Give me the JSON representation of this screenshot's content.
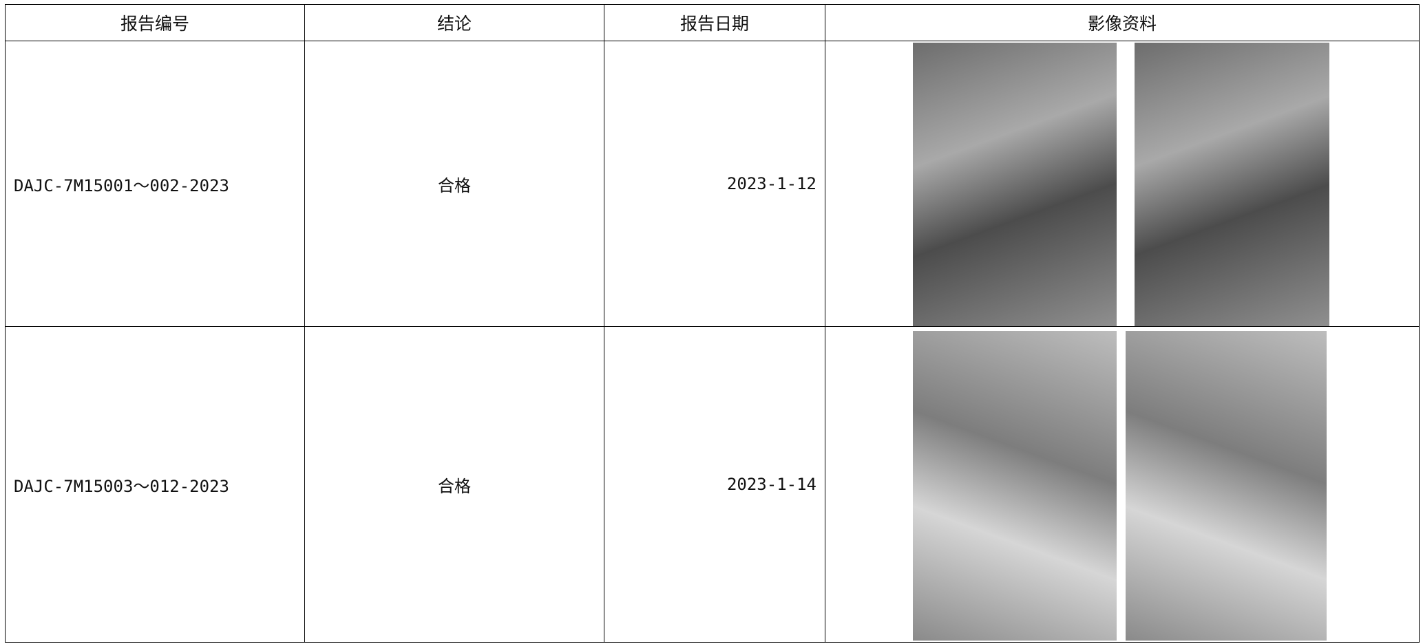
{
  "table": {
    "header": [
      "报告编号",
      "结论",
      "报告日期",
      "影像资料"
    ],
    "rows": [
      [
        "DAJC-7M15001～002-2023",
        "合格",
        "2023-1-12"
      ],
      [
        "DAJC-7M15003～012-2023",
        "合格",
        "2023-1-14"
      ]
    ]
  }
}
